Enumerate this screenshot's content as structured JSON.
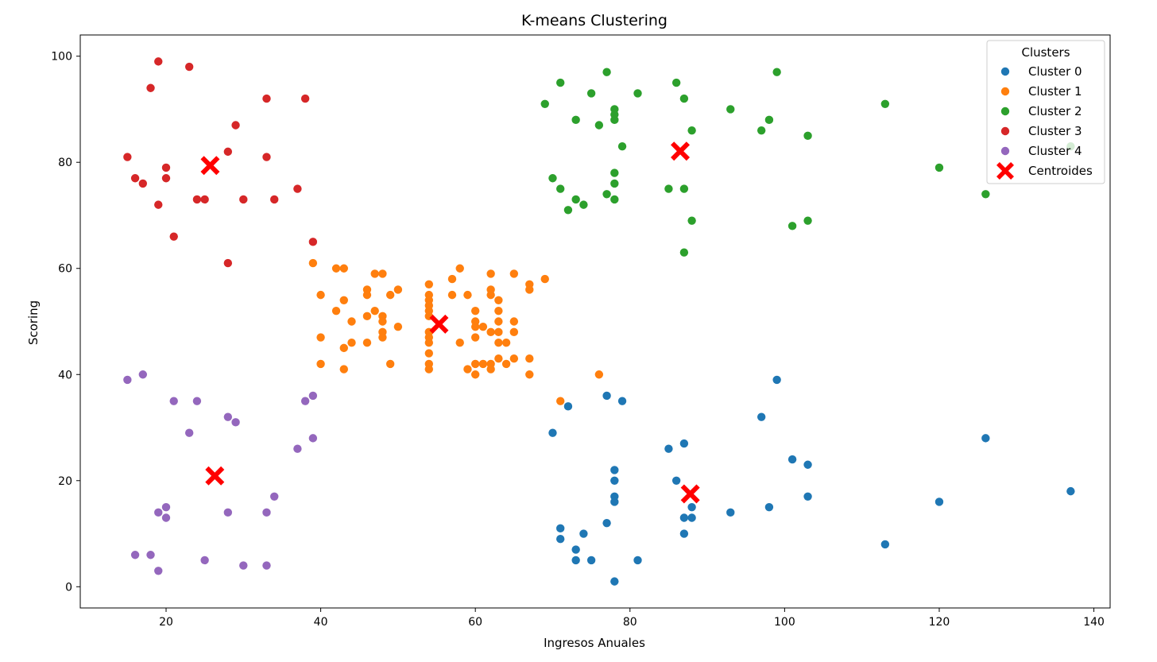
{
  "chart_data": {
    "type": "scatter",
    "title": "K-means Clustering",
    "xlabel": "Ingresos Anuales",
    "ylabel": "Scoring",
    "xlim": [
      8.9,
      142.1
    ],
    "ylim": [
      -4,
      104
    ],
    "xticks": [
      20,
      40,
      60,
      80,
      100,
      120,
      140
    ],
    "yticks": [
      0,
      20,
      40,
      60,
      80,
      100
    ],
    "grid": false,
    "legend": {
      "title": "Clusters",
      "placement": "top-right"
    },
    "series": [
      {
        "name": "Cluster 0",
        "color": "#1f77b4",
        "points": [
          [
            70,
            29
          ],
          [
            71,
            11
          ],
          [
            71,
            9
          ],
          [
            72,
            34
          ],
          [
            73,
            7
          ],
          [
            73,
            5
          ],
          [
            74,
            10
          ],
          [
            75,
            5
          ],
          [
            77,
            36
          ],
          [
            77,
            12
          ],
          [
            78,
            22
          ],
          [
            78,
            20
          ],
          [
            78,
            17
          ],
          [
            78,
            16
          ],
          [
            78,
            1
          ],
          [
            79,
            35
          ],
          [
            81,
            5
          ],
          [
            85,
            26
          ],
          [
            86,
            20
          ],
          [
            87,
            27
          ],
          [
            87,
            13
          ],
          [
            87,
            10
          ],
          [
            88,
            15
          ],
          [
            88,
            13
          ],
          [
            93,
            14
          ],
          [
            97,
            32
          ],
          [
            98,
            15
          ],
          [
            99,
            39
          ],
          [
            101,
            24
          ],
          [
            103,
            23
          ],
          [
            103,
            17
          ],
          [
            113,
            8
          ],
          [
            120,
            16
          ],
          [
            126,
            28
          ],
          [
            137,
            18
          ]
        ]
      },
      {
        "name": "Cluster 1",
        "color": "#ff7f0e",
        "points": [
          [
            39,
            61
          ],
          [
            40,
            55
          ],
          [
            40,
            47
          ],
          [
            40,
            42
          ],
          [
            42,
            52
          ],
          [
            42,
            60
          ],
          [
            43,
            60
          ],
          [
            43,
            54
          ],
          [
            43,
            45
          ],
          [
            43,
            41
          ],
          [
            44,
            50
          ],
          [
            44,
            46
          ],
          [
            46,
            56
          ],
          [
            46,
            55
          ],
          [
            46,
            51
          ],
          [
            46,
            46
          ],
          [
            47,
            59
          ],
          [
            47,
            52
          ],
          [
            48,
            59
          ],
          [
            48,
            51
          ],
          [
            48,
            50
          ],
          [
            48,
            48
          ],
          [
            48,
            47
          ],
          [
            49,
            55
          ],
          [
            49,
            42
          ],
          [
            50,
            56
          ],
          [
            50,
            49
          ],
          [
            54,
            57
          ],
          [
            54,
            55
          ],
          [
            54,
            54
          ],
          [
            54,
            53
          ],
          [
            54,
            52
          ],
          [
            54,
            51
          ],
          [
            54,
            48
          ],
          [
            54,
            47
          ],
          [
            54,
            46
          ],
          [
            54,
            44
          ],
          [
            54,
            42
          ],
          [
            54,
            41
          ],
          [
            57,
            58
          ],
          [
            57,
            55
          ],
          [
            58,
            60
          ],
          [
            58,
            46
          ],
          [
            59,
            55
          ],
          [
            59,
            41
          ],
          [
            60,
            52
          ],
          [
            60,
            50
          ],
          [
            60,
            49
          ],
          [
            60,
            47
          ],
          [
            60,
            42
          ],
          [
            60,
            40
          ],
          [
            61,
            49
          ],
          [
            61,
            42
          ],
          [
            62,
            59
          ],
          [
            62,
            56
          ],
          [
            62,
            55
          ],
          [
            62,
            48
          ],
          [
            62,
            42
          ],
          [
            62,
            41
          ],
          [
            63,
            54
          ],
          [
            63,
            52
          ],
          [
            63,
            50
          ],
          [
            63,
            48
          ],
          [
            63,
            46
          ],
          [
            63,
            43
          ],
          [
            64,
            46
          ],
          [
            64,
            42
          ],
          [
            65,
            59
          ],
          [
            65,
            50
          ],
          [
            65,
            48
          ],
          [
            65,
            43
          ],
          [
            67,
            57
          ],
          [
            67,
            56
          ],
          [
            67,
            43
          ],
          [
            67,
            40
          ],
          [
            69,
            58
          ],
          [
            71,
            35
          ],
          [
            76,
            40
          ]
        ]
      },
      {
        "name": "Cluster 2",
        "color": "#2ca02c",
        "points": [
          [
            69,
            91
          ],
          [
            70,
            77
          ],
          [
            71,
            95
          ],
          [
            71,
            75
          ],
          [
            72,
            71
          ],
          [
            73,
            88
          ],
          [
            73,
            73
          ],
          [
            74,
            72
          ],
          [
            75,
            93
          ],
          [
            76,
            87
          ],
          [
            77,
            97
          ],
          [
            77,
            74
          ],
          [
            78,
            90
          ],
          [
            78,
            89
          ],
          [
            78,
            88
          ],
          [
            78,
            78
          ],
          [
            78,
            76
          ],
          [
            78,
            73
          ],
          [
            79,
            83
          ],
          [
            81,
            93
          ],
          [
            85,
            75
          ],
          [
            86,
            95
          ],
          [
            87,
            92
          ],
          [
            87,
            75
          ],
          [
            87,
            63
          ],
          [
            88,
            86
          ],
          [
            88,
            69
          ],
          [
            93,
            90
          ],
          [
            97,
            86
          ],
          [
            98,
            88
          ],
          [
            99,
            97
          ],
          [
            101,
            68
          ],
          [
            103,
            85
          ],
          [
            103,
            69
          ],
          [
            113,
            91
          ],
          [
            120,
            79
          ],
          [
            126,
            74
          ],
          [
            137,
            83
          ]
        ]
      },
      {
        "name": "Cluster 3",
        "color": "#d62728",
        "points": [
          [
            15,
            81
          ],
          [
            16,
            77
          ],
          [
            17,
            76
          ],
          [
            18,
            94
          ],
          [
            19,
            99
          ],
          [
            19,
            72
          ],
          [
            20,
            79
          ],
          [
            20,
            77
          ],
          [
            21,
            66
          ],
          [
            23,
            98
          ],
          [
            24,
            73
          ],
          [
            25,
            73
          ],
          [
            28,
            82
          ],
          [
            28,
            61
          ],
          [
            29,
            87
          ],
          [
            30,
            73
          ],
          [
            33,
            92
          ],
          [
            33,
            81
          ],
          [
            34,
            73
          ],
          [
            37,
            75
          ],
          [
            38,
            92
          ],
          [
            39,
            65
          ]
        ]
      },
      {
        "name": "Cluster 4",
        "color": "#9467bd",
        "points": [
          [
            15,
            39
          ],
          [
            16,
            6
          ],
          [
            17,
            40
          ],
          [
            18,
            6
          ],
          [
            19,
            14
          ],
          [
            19,
            3
          ],
          [
            20,
            15
          ],
          [
            20,
            13
          ],
          [
            21,
            35
          ],
          [
            23,
            29
          ],
          [
            24,
            35
          ],
          [
            25,
            5
          ],
          [
            28,
            32
          ],
          [
            28,
            14
          ],
          [
            29,
            31
          ],
          [
            30,
            4
          ],
          [
            33,
            14
          ],
          [
            33,
            4
          ],
          [
            34,
            17
          ],
          [
            37,
            26
          ],
          [
            38,
            35
          ],
          [
            39,
            36
          ],
          [
            39,
            28
          ]
        ]
      }
    ],
    "centroids": {
      "name": "Centroides",
      "color": "#ff0000",
      "marker": "X",
      "points": [
        [
          25.7,
          79.4
        ],
        [
          55.3,
          49.5
        ],
        [
          86.5,
          82.1
        ],
        [
          87.8,
          17.5
        ],
        [
          26.3,
          20.9
        ]
      ]
    }
  }
}
